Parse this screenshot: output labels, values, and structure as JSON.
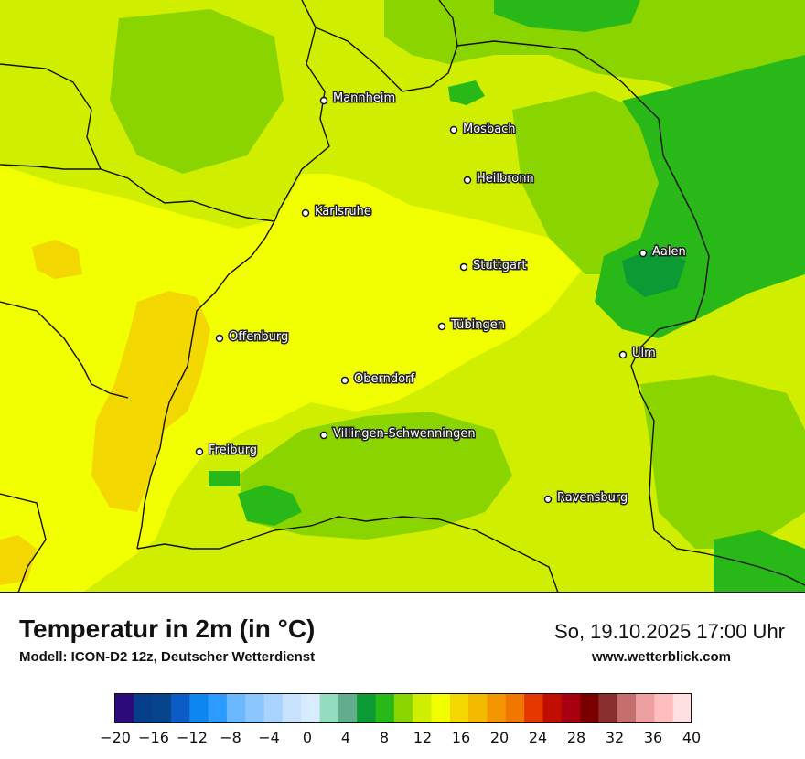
{
  "map": {
    "cities": [
      {
        "name": "Mannheim"
      },
      {
        "name": "Mosbach"
      },
      {
        "name": "Heilbronn"
      },
      {
        "name": "Karlsruhe"
      },
      {
        "name": "Aalen"
      },
      {
        "name": "Stuttgart"
      },
      {
        "name": "Tübingen"
      },
      {
        "name": "Offenburg"
      },
      {
        "name": "Ulm"
      },
      {
        "name": "Oberndorf"
      },
      {
        "name": "Villingen-Schwenningen"
      },
      {
        "name": "Freiburg"
      },
      {
        "name": "Ravensburg"
      }
    ],
    "colors": {
      "border": "#111111",
      "dominant_field": "#cfee00"
    }
  },
  "footer": {
    "title": "Temperatur in 2m (in °C)",
    "model": "Modell: ICON-D2 12z, Deutscher Wetterdienst",
    "datetime": "So, 19.10.2025 17:00 Uhr",
    "site": "www.wetterblick.com"
  },
  "scale": {
    "ticks": [
      "−20",
      "−16",
      "−12",
      "−8",
      "−4",
      "0",
      "4",
      "8",
      "12",
      "16",
      "20",
      "24",
      "28",
      "32",
      "36",
      "40"
    ],
    "colors": [
      "#2d0a7a",
      "#073e8a",
      "#06458e",
      "#0b5cc4",
      "#0e86f0",
      "#2c9bff",
      "#6ab8ff",
      "#8cc6ff",
      "#a9d3ff",
      "#c9e3ff",
      "#d9ecff",
      "#93dcc0",
      "#61ad8c",
      "#0c9a35",
      "#28b818",
      "#8ad500",
      "#cfee00",
      "#f2ff00",
      "#f2d700",
      "#f3bb00",
      "#f39600",
      "#f07800",
      "#e53800",
      "#c00e00",
      "#a80010",
      "#7a0000",
      "#8a2f2f",
      "#c46e6e",
      "#eea0a0",
      "#ffbdbd",
      "#ffe0e0"
    ]
  }
}
